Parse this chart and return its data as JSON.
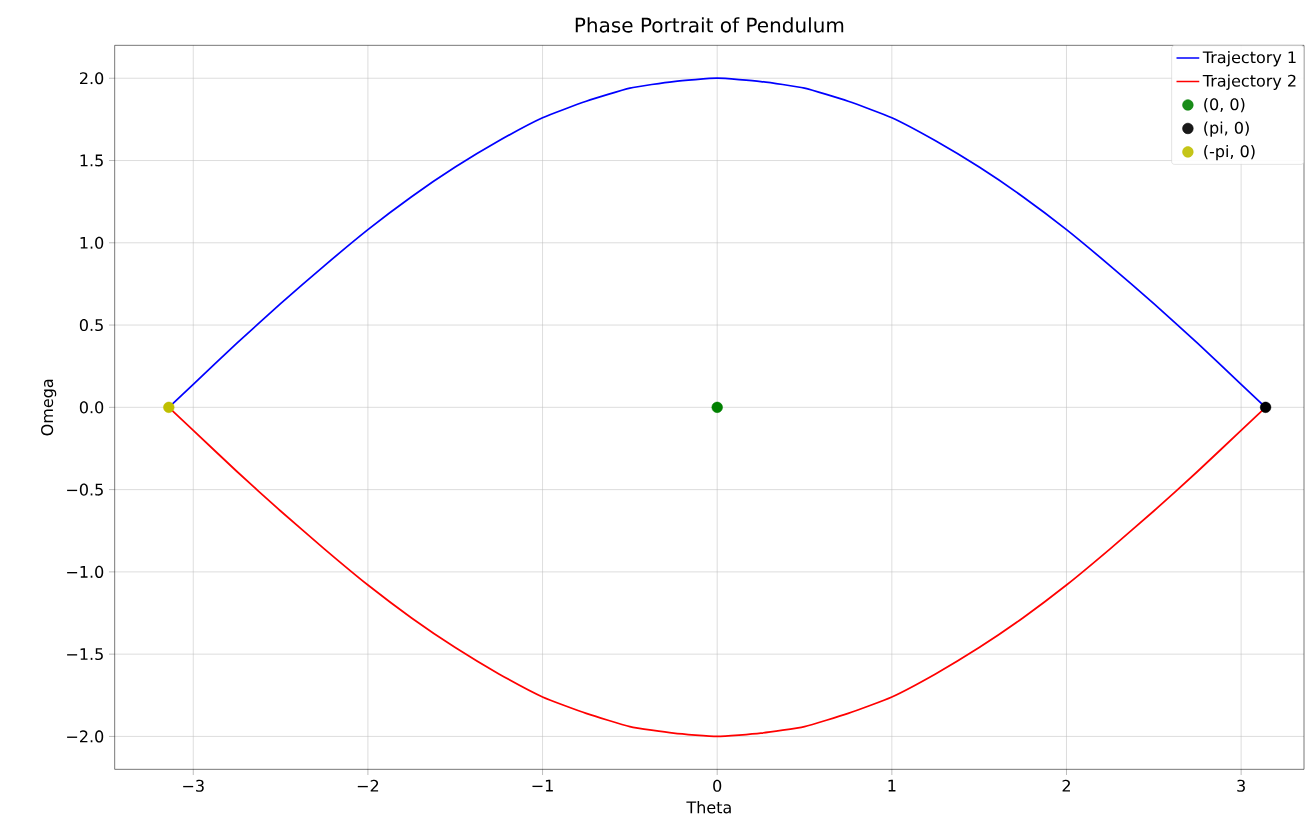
{
  "chart_data": {
    "type": "line",
    "title": "Phase Portrait of Pendulum",
    "xlabel": "Theta",
    "ylabel": "Omega",
    "xlim": [
      -3.45,
      3.36
    ],
    "ylim": [
      -2.2,
      2.2
    ],
    "xticks": [
      {
        "value": -3,
        "label": "−3"
      },
      {
        "value": -2,
        "label": "−2"
      },
      {
        "value": -1,
        "label": "−1"
      },
      0,
      1,
      2,
      3
    ],
    "yticks": [
      {
        "value": -2,
        "label": "−2.0"
      },
      {
        "value": -1.5,
        "label": "−1.5"
      },
      {
        "value": -1,
        "label": "−1.0"
      },
      {
        "value": -0.5,
        "label": "−0.5"
      },
      {
        "value": 0,
        "label": "0.0"
      },
      {
        "value": 0.5,
        "label": "0.5"
      },
      {
        "value": 1,
        "label": "1.0"
      },
      {
        "value": 1.5,
        "label": "1.5"
      },
      {
        "value": 2,
        "label": "2.0"
      }
    ],
    "grid": true,
    "legend": "top right",
    "series": [
      {
        "name": "Trajectory 1",
        "type": "line",
        "color": "#0000ff",
        "marker": "none",
        "x": [
          -3.14,
          -3,
          -2.75,
          -2.5,
          -2.25,
          -2,
          -1.75,
          -1.5,
          -1.25,
          -1,
          -0.75,
          -0.5,
          -0.25,
          0,
          0.25,
          0.5,
          0.75,
          1,
          1.25,
          1.5,
          1.75,
          2,
          2.25,
          2.5,
          2.75,
          3,
          3.14
        ],
        "values": [
          0.0,
          0.14,
          0.39,
          0.63,
          0.86,
          1.08,
          1.28,
          1.46,
          1.62,
          1.76,
          1.86,
          1.94,
          1.98,
          2.0,
          1.98,
          1.94,
          1.86,
          1.76,
          1.62,
          1.46,
          1.28,
          1.08,
          0.86,
          0.63,
          0.39,
          0.14,
          0.0
        ]
      },
      {
        "name": "Trajectory 2",
        "type": "line",
        "color": "#ff0000",
        "marker": "none",
        "x": [
          -3.14,
          -3,
          -2.75,
          -2.5,
          -2.25,
          -2,
          -1.75,
          -1.5,
          -1.25,
          -1,
          -0.75,
          -0.5,
          -0.25,
          0,
          0.25,
          0.5,
          0.75,
          1,
          1.25,
          1.5,
          1.75,
          2,
          2.25,
          2.5,
          2.75,
          3,
          3.14
        ],
        "values": [
          0.0,
          -0.14,
          -0.39,
          -0.63,
          -0.86,
          -1.08,
          -1.28,
          -1.46,
          -1.62,
          -1.76,
          -1.86,
          -1.94,
          -1.98,
          -2.0,
          -1.98,
          -1.94,
          -1.86,
          -1.76,
          -1.62,
          -1.46,
          -1.28,
          -1.08,
          -0.86,
          -0.63,
          -0.39,
          -0.14,
          0.0
        ]
      },
      {
        "name": "(0, 0)",
        "type": "scatter",
        "color": "#008000",
        "marker": "circle",
        "x": [
          0
        ],
        "values": [
          0
        ]
      },
      {
        "name": "(pi, 0)",
        "type": "scatter",
        "color": "#000000",
        "marker": "circle",
        "x": [
          3.14
        ],
        "values": [
          0
        ]
      },
      {
        "name": "(-pi, 0)",
        "type": "scatter",
        "color": "#bfbf00",
        "marker": "circle",
        "x": [
          -3.14
        ],
        "values": [
          0
        ]
      }
    ]
  }
}
